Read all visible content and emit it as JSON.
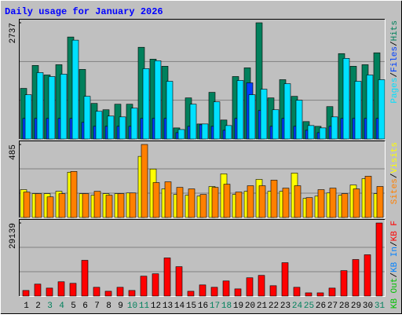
{
  "title": "Daily usage for January 2026",
  "legend_separator": "/",
  "categories": [
    "1",
    "2",
    "3",
    "4",
    "5",
    "6",
    "7",
    "8",
    "9",
    "10",
    "11",
    "12",
    "13",
    "14",
    "15",
    "16",
    "17",
    "18",
    "19",
    "20",
    "21",
    "22",
    "23",
    "24",
    "25",
    "26",
    "27",
    "28",
    "29",
    "30",
    "31"
  ],
  "category_colors": [
    "#000000",
    "#000000",
    "#00805c",
    "#00805c",
    "#000000",
    "#000000",
    "#000000",
    "#000000",
    "#000000",
    "#00805c",
    "#00805c",
    "#000000",
    "#000000",
    "#000000",
    "#000000",
    "#000000",
    "#00805c",
    "#00805c",
    "#000000",
    "#000000",
    "#000000",
    "#000000",
    "#000000",
    "#00805c",
    "#00805c",
    "#000000",
    "#000000",
    "#000000",
    "#000000",
    "#000000",
    "#00805c"
  ],
  "chart_data": [
    {
      "type": "bar",
      "ylim": [
        0,
        2737
      ],
      "yticks": [
        2737
      ],
      "grid": true,
      "series": [
        {
          "name": "Hits",
          "color": "#00805c",
          "values": [
            1192,
            1732,
            1508,
            1750,
            2402,
            1639,
            838,
            689,
            819,
            819,
            2160,
            1881,
            1713,
            261,
            968,
            354,
            1099,
            447,
            1471,
            1676,
            2737,
            968,
            1397,
            1005,
            410,
            298,
            763,
            2011,
            1713,
            1750,
            2030
          ]
        },
        {
          "name": "Files",
          "color": "#0040ff",
          "values": [
            484,
            484,
            484,
            484,
            484,
            391,
            298,
            298,
            298,
            298,
            484,
            484,
            484,
            149,
            298,
            335,
            298,
            205,
            484,
            1322,
            670,
            298,
            484,
            298,
            205,
            149,
            298,
            484,
            484,
            484,
            484
          ]
        },
        {
          "name": "Pages",
          "color": "#00e0ff",
          "values": [
            1043,
            1564,
            1471,
            1527,
            2328,
            1005,
            652,
            540,
            521,
            726,
            1657,
            1843,
            1359,
            223,
            819,
            354,
            875,
            317,
            1378,
            1043,
            1173,
            689,
            1303,
            912,
            317,
            261,
            521,
            1899,
            1359,
            1508,
            1397
          ]
        }
      ]
    },
    {
      "type": "bar",
      "ylim": [
        0,
        485
      ],
      "yticks": [
        485
      ],
      "grid": true,
      "series": [
        {
          "name": "Visits",
          "color": "#ffff00",
          "values": [
            185,
            158,
            158,
            174,
            301,
            158,
            148,
            158,
            158,
            163,
            406,
            322,
            190,
            153,
            148,
            142,
            206,
            290,
            153,
            174,
            253,
            174,
            174,
            295,
            127,
            142,
            163,
            148,
            216,
            258,
            158
          ]
        },
        {
          "name": "Sites",
          "color": "#ff8000",
          "values": [
            169,
            158,
            137,
            158,
            306,
            158,
            174,
            148,
            158,
            163,
            485,
            232,
            237,
            200,
            190,
            153,
            200,
            221,
            169,
            211,
            211,
            248,
            195,
            211,
            132,
            185,
            195,
            158,
            190,
            274,
            206
          ]
        }
      ]
    },
    {
      "type": "bar",
      "ylim": [
        0,
        29139
      ],
      "yticks": [
        29139
      ],
      "grid": true,
      "series": [
        {
          "name": "KB F",
          "color": "#ff0000",
          "values": [
            2217,
            4751,
            3167,
            5701,
            5067,
            14252,
            3484,
            1900,
            3484,
            2217,
            7918,
            8868,
            15202,
            11718,
            1900,
            4434,
            3484,
            6017,
            2850,
            7284,
            8234,
            4117,
            13302,
            3484,
            1267,
            1267,
            3167,
            10134,
            14568,
            16468,
            29139
          ]
        }
      ],
      "extra_legend": [
        {
          "name": "KB In",
          "color": "#0080ff"
        },
        {
          "name": "KB Out",
          "color": "#00c000"
        }
      ]
    }
  ]
}
